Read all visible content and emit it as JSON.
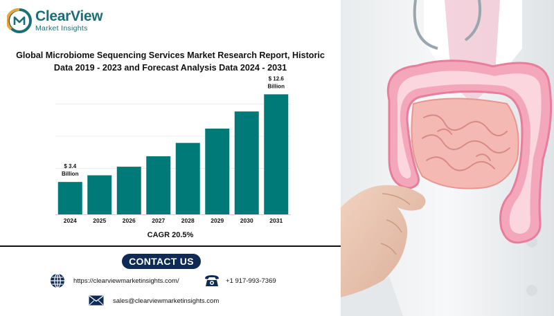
{
  "logo": {
    "name": "ClearView",
    "sub": "Market Insights"
  },
  "title_line1": "Global Microbiome Sequencing Services Market Research Report, Historic",
  "title_line2": "Data 2019 - 2023 and Forecast Analysis Data 2024 - 2031",
  "chart_data": {
    "type": "bar",
    "title": "Global Microbiome Sequencing Services Market Research Report, Historic Data 2019 - 2023 and Forecast Analysis Data 2024 - 2031",
    "categories": [
      "2024",
      "2025",
      "2026",
      "2027",
      "2028",
      "2029",
      "2030",
      "2031"
    ],
    "values": [
      3.4,
      4.1,
      5.0,
      6.1,
      7.5,
      9.0,
      10.8,
      12.6
    ],
    "data_labels": {
      "2024": [
        "$ 3.4",
        "Billion"
      ],
      "2031": [
        "$ 12.6",
        "Billion"
      ]
    },
    "ylim": [
      0,
      13.5
    ],
    "grid": true,
    "bar_color": "#007a78"
  },
  "cagr": "CAGR 20.5%",
  "contact": {
    "button": "CONTACT US",
    "website": "https://clearviewmarketinsights.com/",
    "phone": "+1 917-993-7369",
    "email": "sales@clearviewmarketinsights.com"
  },
  "icons": {
    "website": "globe-icon",
    "phone": "phone-icon",
    "email": "mail-icon"
  },
  "colors": {
    "brand": "#1a6f77",
    "button": "#0e2a56",
    "bar": "#007a78"
  }
}
